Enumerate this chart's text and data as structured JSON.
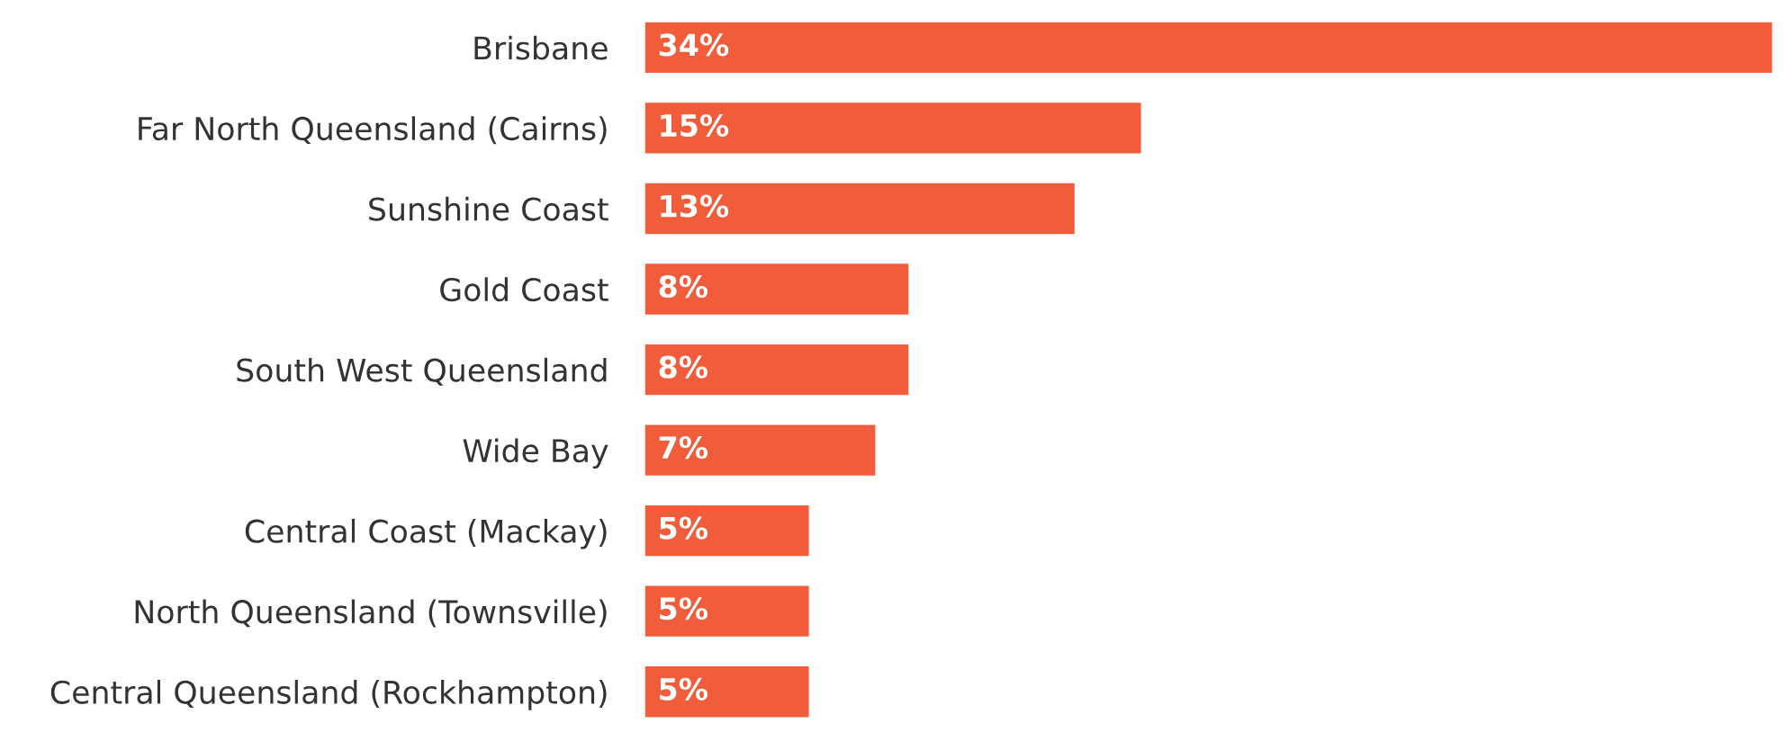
{
  "chart_data": {
    "type": "bar",
    "orientation": "horizontal",
    "categories": [
      "Brisbane",
      "Far North Queensland (Cairns)",
      "Sunshine Coast",
      "Gold Coast",
      "South West Queensland",
      "Wide Bay",
      "Central Coast (Mackay)",
      "North Queensland (Townsville)",
      "Central Queensland (Rockhampton)"
    ],
    "values": [
      34,
      15,
      13,
      8,
      8,
      7,
      5,
      5,
      5
    ],
    "value_labels": [
      "34%",
      "15%",
      "13%",
      "8%",
      "8%",
      "7%",
      "5%",
      "5%",
      "5%"
    ],
    "color": "#f15d3a",
    "grid": false,
    "legend": false
  }
}
